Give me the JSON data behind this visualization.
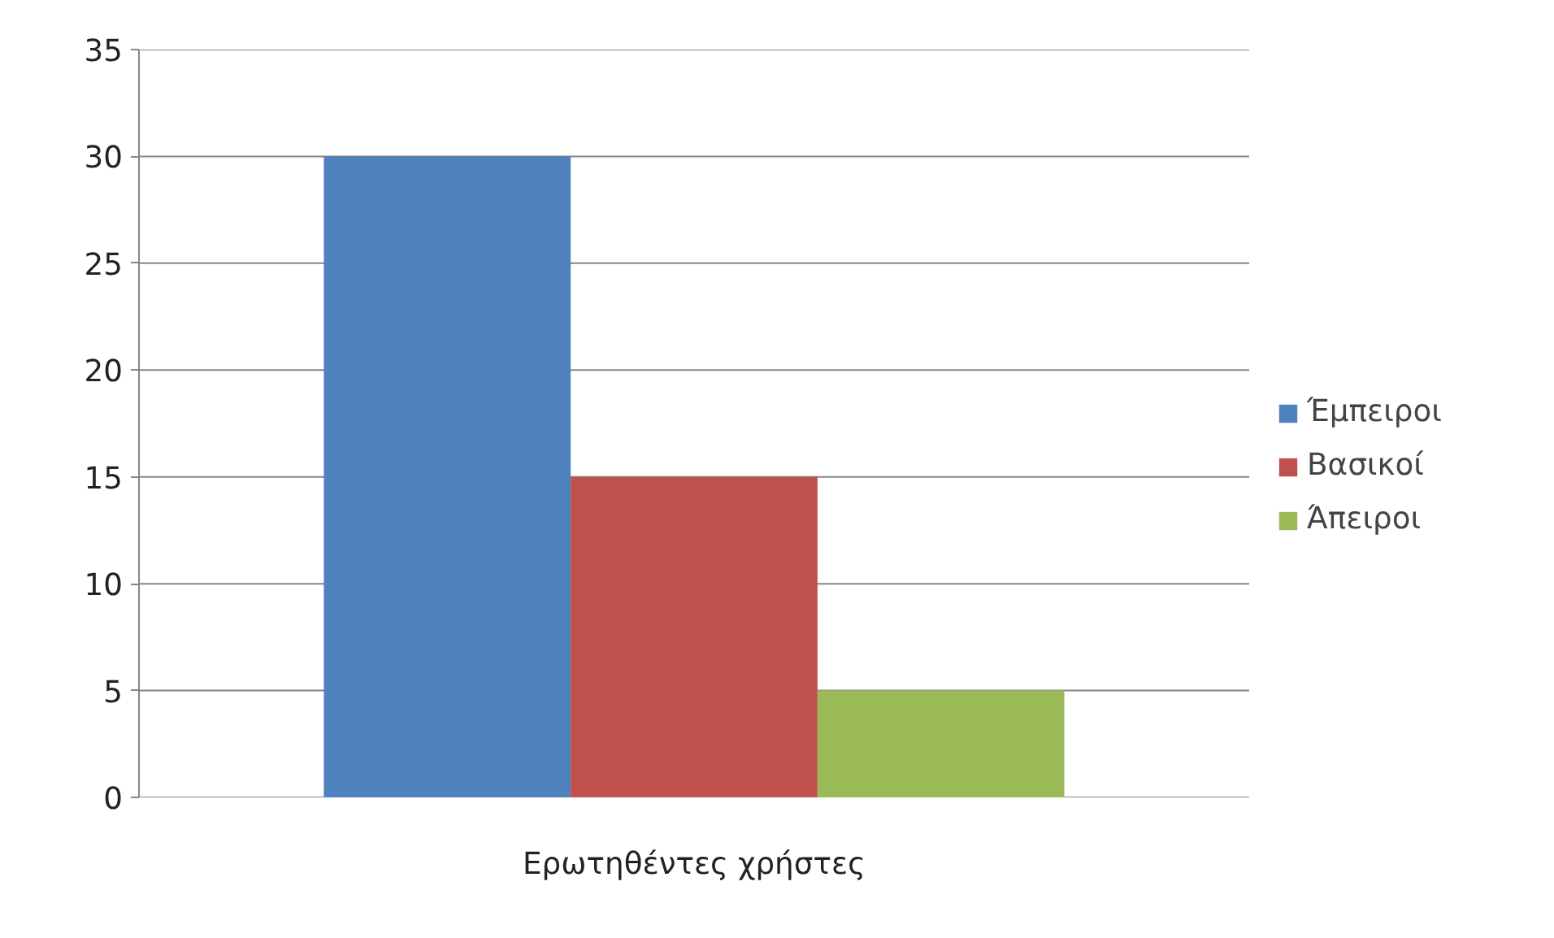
{
  "chart_data": {
    "type": "bar",
    "categories": [
      "Ερωτηθέντες χρήστες"
    ],
    "series": [
      {
        "name": "Έμπειροι",
        "color": "#4f81bd",
        "values": [
          30
        ]
      },
      {
        "name": "Βασικοί",
        "color": "#c0504d",
        "values": [
          15
        ]
      },
      {
        "name": "Άπειροι",
        "color": "#9bbb59",
        "values": [
          5
        ]
      }
    ],
    "ylim": [
      0,
      35
    ],
    "yticks": [
      0,
      5,
      10,
      15,
      20,
      25,
      30,
      35
    ],
    "grid": "y",
    "legend": "right"
  }
}
